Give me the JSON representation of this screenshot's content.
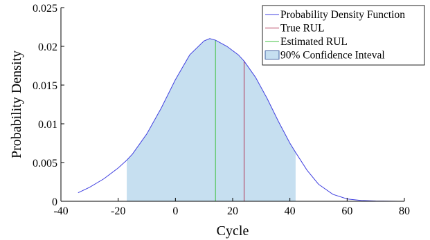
{
  "chart_data": {
    "type": "area",
    "xlabel": "Cycle",
    "ylabel": "Probability Density",
    "xlim": [
      -40,
      80
    ],
    "ylim": [
      0,
      0.025
    ],
    "xticks": [
      -40,
      -20,
      0,
      20,
      40,
      60,
      80
    ],
    "xtick_labels": [
      "-40",
      "-20",
      "0",
      "20",
      "40",
      "60",
      "80"
    ],
    "yticks": [
      0,
      0.005,
      0.01,
      0.015,
      0.02,
      0.025
    ],
    "ytick_labels": [
      "0",
      "0.005",
      "0.01",
      "0.015",
      "0.02",
      "0.025"
    ],
    "grid": false,
    "legend_position": "top-right",
    "series": [
      {
        "name": "Probability Density Function",
        "type": "line",
        "color": "#4040e0",
        "x": [
          -34,
          -30,
          -25,
          -20,
          -17,
          -15,
          -10,
          -5,
          0,
          5,
          10,
          12,
          14,
          18,
          22,
          24,
          28,
          32,
          36,
          40,
          42,
          46,
          50,
          55,
          60,
          65,
          70,
          75,
          78
        ],
        "y": [
          0.0011,
          0.0018,
          0.0029,
          0.0043,
          0.0053,
          0.0061,
          0.0087,
          0.012,
          0.0157,
          0.0189,
          0.0207,
          0.021,
          0.0208,
          0.02,
          0.0189,
          0.0181,
          0.016,
          0.0133,
          0.0103,
          0.0075,
          0.0063,
          0.004,
          0.0022,
          0.0009,
          0.0003,
          0.0001,
          3e-05,
          1e-05,
          0.0
        ]
      },
      {
        "name": "True RUL",
        "type": "vline",
        "color": "#b03050",
        "x": 24
      },
      {
        "name": "Estimated RUL",
        "type": "vline",
        "color": "#40c040",
        "x": 14
      },
      {
        "name": "90% Confidence Inteval",
        "type": "area",
        "color": "#c6dff0",
        "x_range": [
          -17,
          42
        ]
      }
    ]
  }
}
